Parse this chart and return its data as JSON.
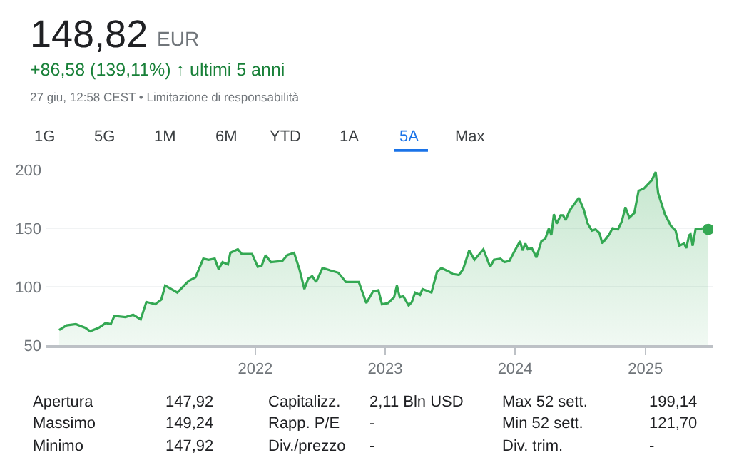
{
  "chart_data": {
    "type": "area",
    "title": "148,82",
    "annotations": [
      "EUR",
      "+86,58 (139,11%) ↑ ultimi 5 anni",
      "27 giu, 12:58 CEST • Limitazione di responsabilità",
      "1G",
      "5G",
      "1M",
      "6M",
      "YTD",
      "1A",
      "5A",
      "Max",
      "Apertura",
      "147,92",
      "Capitalizz.",
      "2,11 Bln USD",
      "Max 52 sett.",
      "199,14",
      "Massimo",
      "149,24",
      "Rapp. P/E",
      "-",
      "Min 52 sett.",
      "121,70",
      "Minimo",
      "147,92",
      "Div./prezzo",
      "-",
      "Div. trim.",
      "-"
    ],
    "xlim": [
      "2020-05-22",
      "2025-07-11"
    ],
    "xticks": [
      {
        "value": "2022-01-01",
        "label": "2022"
      },
      {
        "value": "2023-01-01",
        "label": "2023"
      },
      {
        "value": "2024-01-01",
        "label": "2024"
      },
      {
        "value": "2025-01-01",
        "label": "2025"
      }
    ],
    "ylim": [
      50,
      200
    ],
    "yticks": [
      50,
      100,
      150,
      200
    ],
    "grid": "y",
    "legend": false,
    "series": [
      {
        "color": "#34a853",
        "marker": "none",
        "x": [
          "2020-06-29",
          "2020-07-20",
          "2020-08-15",
          "2020-09-10",
          "2020-09-24",
          "2020-10-19",
          "2020-11-07",
          "2020-11-21",
          "2020-12-01",
          "2021-01-01",
          "2021-01-23",
          "2021-02-13",
          "2021-03-01",
          "2021-03-26",
          "2021-04-12",
          "2021-04-23",
          "2021-05-27",
          "2021-06-28",
          "2021-07-17",
          "2021-08-08",
          "2021-08-23",
          "2021-09-09",
          "2021-09-20",
          "2021-10-01",
          "2021-10-16",
          "2021-10-23",
          "2021-11-13",
          "2021-11-24",
          "2021-12-23",
          "2022-01-08",
          "2022-01-19",
          "2022-01-30",
          "2022-02-14",
          "2022-03-18",
          "2022-04-01",
          "2022-04-20",
          "2022-05-05",
          "2022-05-19",
          "2022-05-30",
          "2022-06-10",
          "2022-06-21",
          "2022-07-09",
          "2022-07-30",
          "2022-08-22",
          "2022-09-13",
          "2022-10-19",
          "2022-11-09",
          "2022-11-28",
          "2022-12-13",
          "2022-12-23",
          "2023-01-09",
          "2023-01-26",
          "2023-02-03",
          "2023-02-11",
          "2023-02-21",
          "2023-03-08",
          "2023-03-17",
          "2023-03-26",
          "2023-04-09",
          "2023-04-16",
          "2023-05-11",
          "2023-05-27",
          "2023-06-08",
          "2023-06-29",
          "2023-07-09",
          "2023-07-27",
          "2023-08-08",
          "2023-08-25",
          "2023-09-09",
          "2023-10-04",
          "2023-10-23",
          "2023-11-03",
          "2023-11-21",
          "2023-12-02",
          "2023-12-16",
          "2023-12-28",
          "2024-01-15",
          "2024-01-22",
          "2024-01-30",
          "2024-02-06",
          "2024-02-17",
          "2024-03-01",
          "2024-03-15",
          "2024-03-26",
          "2024-04-05",
          "2024-04-12",
          "2024-04-19",
          "2024-04-27",
          "2024-05-08",
          "2024-05-15",
          "2024-05-22",
          "2024-06-02",
          "2024-06-28",
          "2024-07-12",
          "2024-07-23",
          "2024-08-04",
          "2024-08-14",
          "2024-08-25",
          "2024-09-02",
          "2024-09-20",
          "2024-10-01",
          "2024-10-16",
          "2024-10-27",
          "2024-11-06",
          "2024-11-17",
          "2024-12-01",
          "2024-12-13",
          "2024-12-28",
          "2025-01-19",
          "2025-01-30",
          "2025-02-06",
          "2025-02-25",
          "2025-03-14",
          "2025-03-27",
          "2025-04-06",
          "2025-04-20",
          "2025-04-26",
          "2025-05-04",
          "2025-05-08",
          "2025-05-14",
          "2025-05-22",
          "2025-06-13",
          "2025-06-19",
          "2025-06-27"
        ],
        "values": [
          63,
          67,
          68,
          65,
          62,
          65,
          69,
          68,
          75,
          74,
          76,
          72,
          87,
          85,
          89,
          101,
          95,
          105,
          108,
          124,
          123,
          124,
          115,
          121,
          119,
          129,
          132,
          128,
          128,
          117,
          118,
          127,
          121,
          122,
          127,
          129,
          115,
          98,
          107,
          109,
          104,
          116,
          114,
          112,
          104,
          104,
          86,
          96,
          97,
          85,
          86,
          91,
          101,
          91,
          92,
          84,
          87,
          95,
          93,
          98,
          95,
          113,
          116,
          113,
          111,
          110,
          115,
          131,
          123,
          132,
          117,
          123,
          124,
          121,
          122,
          129,
          139,
          131,
          137,
          132,
          133,
          125,
          139,
          141,
          150,
          144,
          162,
          154,
          161,
          161,
          157,
          165,
          176,
          166,
          154,
          148,
          149,
          146,
          137,
          144,
          150,
          149,
          156,
          168,
          159,
          163,
          182,
          184,
          191,
          198,
          180,
          162,
          152,
          148,
          135,
          137,
          133,
          144,
          145,
          135,
          149,
          150,
          152,
          149
        ]
      },
      {
        "type": "scatter",
        "color": "#34a853",
        "marker": "circle",
        "x": [
          "2025-06-27"
        ],
        "values": [
          149
        ]
      }
    ]
  }
}
